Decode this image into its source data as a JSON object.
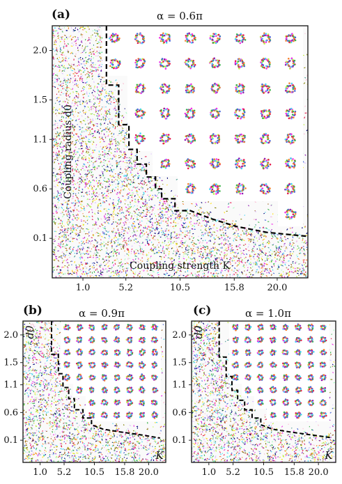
{
  "chart_data": [
    {
      "type": "heatmap",
      "panel_label": "(a)",
      "title": "α = 0.6π",
      "xlabel": "Coupling strength K",
      "ylabel": "Coupling radius d0",
      "x_ticks": [
        "1.0",
        "5.2",
        "10.5",
        "15.8",
        "20.0"
      ],
      "y_ticks": [
        "0.1",
        "0.6",
        "1.1",
        "1.5",
        "2.0"
      ],
      "x_values": [
        1.0,
        5.2,
        10.5,
        15.8,
        20.0
      ],
      "y_values": [
        0.1,
        0.6,
        1.1,
        1.5,
        2.0
      ],
      "xlim": [
        -2.0,
        23.0
      ],
      "ylim": [
        -0.3,
        2.25
      ],
      "boundary": [
        [
          3.3,
          2.25
        ],
        [
          3.3,
          1.65
        ],
        [
          4.5,
          1.65
        ],
        [
          4.5,
          1.25
        ],
        [
          5.5,
          1.25
        ],
        [
          5.5,
          1.0
        ],
        [
          6.3,
          1.0
        ],
        [
          6.3,
          0.85
        ],
        [
          7.2,
          0.85
        ],
        [
          7.2,
          0.72
        ],
        [
          8.1,
          0.72
        ],
        [
          8.1,
          0.6
        ],
        [
          8.7,
          0.6
        ],
        [
          8.7,
          0.5
        ],
        [
          10.0,
          0.5
        ],
        [
          10.0,
          0.38
        ],
        [
          11.5,
          0.38
        ],
        [
          13.5,
          0.3
        ],
        [
          16.0,
          0.22
        ],
        [
          19.0,
          0.16
        ],
        [
          23.0,
          0.12
        ]
      ],
      "ordered_regions": [
        "insets showing clustered swarm snapshots in the upper-right region"
      ]
    },
    {
      "type": "heatmap",
      "panel_label": "(b)",
      "title": "α = 0.9π",
      "xlabel": "K",
      "ylabel": "d0",
      "x_ticks": [
        "1.0",
        "5.2",
        "10.5",
        "15.8",
        "20.0"
      ],
      "y_ticks": [
        "0.1",
        "0.6",
        "1.1",
        "1.5",
        "2.0"
      ],
      "x_values": [
        1.0,
        5.2,
        10.5,
        15.8,
        20.0
      ],
      "y_values": [
        0.1,
        0.6,
        1.1,
        1.5,
        2.0
      ],
      "xlim": [
        -2.0,
        23.0
      ],
      "ylim": [
        -0.3,
        2.25
      ],
      "boundary": [
        [
          3.0,
          2.25
        ],
        [
          3.0,
          1.65
        ],
        [
          4.2,
          1.65
        ],
        [
          4.2,
          1.3
        ],
        [
          5.0,
          1.3
        ],
        [
          5.0,
          1.05
        ],
        [
          6.0,
          1.05
        ],
        [
          6.0,
          0.85
        ],
        [
          7.0,
          0.85
        ],
        [
          7.0,
          0.65
        ],
        [
          8.5,
          0.65
        ],
        [
          8.5,
          0.5
        ],
        [
          10.0,
          0.5
        ],
        [
          10.0,
          0.38
        ],
        [
          12.0,
          0.3
        ],
        [
          15.0,
          0.25
        ],
        [
          18.5,
          0.2
        ],
        [
          22.0,
          0.14
        ]
      ]
    },
    {
      "type": "heatmap",
      "panel_label": "(c)",
      "title": "α = 1.0π",
      "xlabel": "K",
      "ylabel": "d0",
      "x_ticks": [
        "1.0",
        "5.2",
        "10.5",
        "15.8",
        "20.0"
      ],
      "y_ticks": [
        "0.1",
        "0.6",
        "1.1",
        "1.5",
        "2.0"
      ],
      "x_values": [
        1.0,
        5.2,
        10.5,
        15.8,
        20.0
      ],
      "y_values": [
        0.1,
        0.6,
        1.1,
        1.5,
        2.0
      ],
      "xlim": [
        -2.0,
        23.0
      ],
      "ylim": [
        -0.3,
        2.25
      ],
      "boundary": [
        [
          2.8,
          2.25
        ],
        [
          2.8,
          1.6
        ],
        [
          4.0,
          1.6
        ],
        [
          4.0,
          1.25
        ],
        [
          5.0,
          1.25
        ],
        [
          5.0,
          1.0
        ],
        [
          6.0,
          1.0
        ],
        [
          6.0,
          0.82
        ],
        [
          7.2,
          0.82
        ],
        [
          7.2,
          0.65
        ],
        [
          8.5,
          0.65
        ],
        [
          8.5,
          0.5
        ],
        [
          10.0,
          0.5
        ],
        [
          10.0,
          0.38
        ],
        [
          12.0,
          0.3
        ],
        [
          15.0,
          0.25
        ],
        [
          18.5,
          0.2
        ],
        [
          22.0,
          0.15
        ]
      ]
    }
  ],
  "palette": [
    "#e6194b",
    "#3cb44b",
    "#4363d8",
    "#f58231",
    "#911eb4",
    "#42d4f4",
    "#f032e6",
    "#bfef45",
    "#ffe119",
    "#9a6324",
    "#808000",
    "#469990",
    "#000075",
    "#dcbeff",
    "#fabed4",
    "#aaffc3"
  ]
}
